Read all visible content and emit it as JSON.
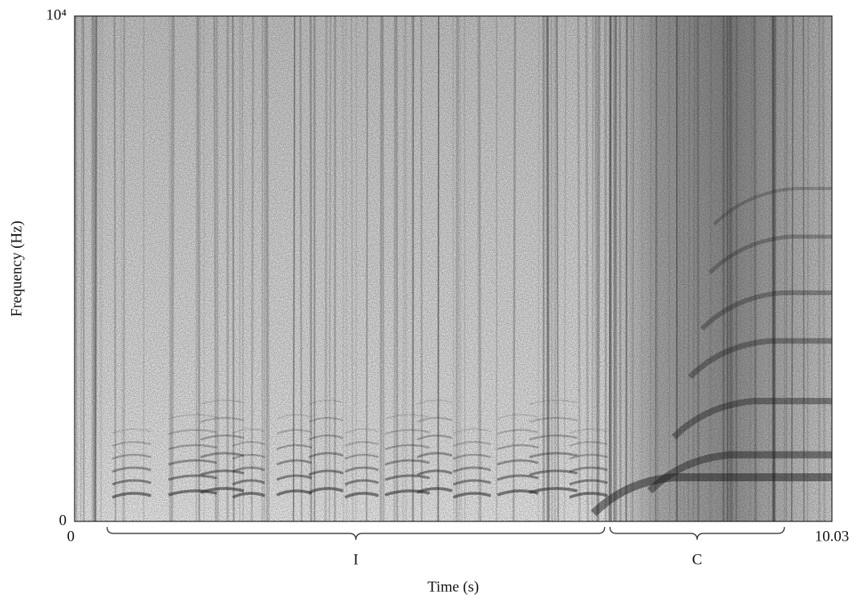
{
  "chart_data": {
    "type": "spectrogram",
    "xlabel": "Time (s)",
    "ylabel": "Frequency (Hz)",
    "xlim": [
      0,
      10.03
    ],
    "xticks": [
      0,
      10.03
    ],
    "ylim": [
      0,
      10000
    ],
    "yticks": [
      0,
      {
        "value": 10000,
        "label": "10⁴"
      }
    ],
    "segments": [
      {
        "label": "I",
        "start": 0.43,
        "end": 7.02
      },
      {
        "label": "C",
        "start": 7.09,
        "end": 9.4
      }
    ]
  }
}
